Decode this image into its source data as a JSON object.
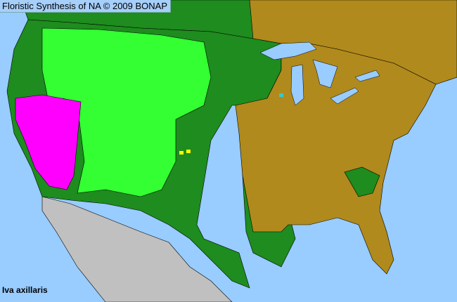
{
  "header": {
    "title": "Floristic Synthesis of NA © 2009 BONAP"
  },
  "species": {
    "name": "Iva axillaris"
  },
  "colors": {
    "ocean": "#99ccff",
    "native_present": "#1e8c1e",
    "native_county": "#33ff33",
    "native_state": "#ff00ff",
    "absent_state": "#b08a1c",
    "noxious_or_other": "#ffff00",
    "adventive": "#33cccc",
    "no_data": "#c0c0c0",
    "lakes": "#99ccff"
  }
}
